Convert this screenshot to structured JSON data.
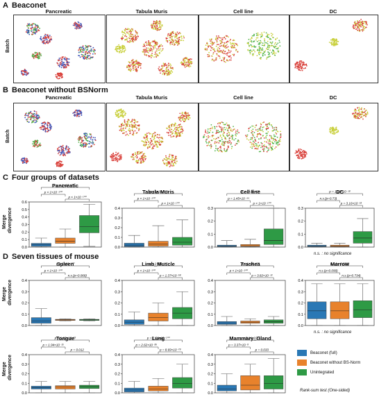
{
  "sections": {
    "A": {
      "letter": "A",
      "title": "Beaconet"
    },
    "B": {
      "letter": "B",
      "title": "Beaconet without BSNorm"
    },
    "C": {
      "letter": "C",
      "title": "Four groups of datasets"
    },
    "D": {
      "letter": "D",
      "title": "Seven tissues of mouse"
    }
  },
  "umap_row_label": "Batch",
  "umap_titles": [
    "Pancreatic",
    "Tabula Muris",
    "Cell line",
    "DC"
  ],
  "box_ylabel": [
    "Merge",
    "divergence"
  ],
  "colors": {
    "full": "#2a78b5",
    "bsnorm": "#e8822c",
    "unint": "#2e9a45",
    "red": "#d9403a",
    "yellow": "#c8cf3a",
    "blue": "#3a52b8",
    "green": "#4fb34a"
  },
  "legend": [
    {
      "label": "Beaconet (full)",
      "color": "#2a78b5"
    },
    {
      "label": "Beaconet without BS-Norm",
      "color": "#e8822c"
    },
    {
      "label": "Unintegrated",
      "color": "#2e9a45"
    }
  ],
  "ns_note": "n.s. : no significance",
  "ranksum_note": "Rank-sum test (One-sided)",
  "chart_data": [
    {
      "type": "box",
      "title": "Pancreatic",
      "ylim": [
        0,
        0.6
      ],
      "yticks": [
        "0.0",
        "0.1",
        "0.2",
        "0.3",
        "0.4",
        "0.5",
        "0.6"
      ],
      "boxes": [
        {
          "q1": 0.01,
          "med": 0.03,
          "q3": 0.05,
          "lo": 0,
          "hi": 0.12
        },
        {
          "q1": 0.05,
          "med": 0.08,
          "q3": 0.12,
          "lo": 0,
          "hi": 0.24
        },
        {
          "q1": 0.19,
          "med": 0.27,
          "q3": 0.42,
          "lo": 0.01,
          "hi": 0.57
        }
      ],
      "pvals": [
        {
          "a": 0,
          "b": 2,
          "text": "p < 1×10⁻¹⁰⁰"
        },
        {
          "a": 0,
          "b": 1,
          "text": "p < 1×10⁻¹⁰⁰"
        },
        {
          "a": 1,
          "b": 2,
          "text": "p < 1×10⁻¹⁰⁰"
        }
      ]
    },
    {
      "type": "box",
      "title": "Tabula Muris",
      "ylim": [
        0,
        0.4
      ],
      "yticks": [
        "0.0",
        "0.1",
        "0.2",
        "0.3",
        "0.4"
      ],
      "boxes": [
        {
          "q1": 0.005,
          "med": 0.02,
          "q3": 0.04,
          "lo": 0,
          "hi": 0.12
        },
        {
          "q1": 0.01,
          "med": 0.03,
          "q3": 0.06,
          "lo": 0,
          "hi": 0.22
        },
        {
          "q1": 0.02,
          "med": 0.05,
          "q3": 0.1,
          "lo": 0,
          "hi": 0.28
        }
      ],
      "pvals": [
        {
          "a": 0,
          "b": 2,
          "text": "p < 1×10⁻¹⁰⁰"
        },
        {
          "a": 0,
          "b": 1,
          "text": "p < 1×10⁻¹⁰⁰"
        },
        {
          "a": 1,
          "b": 2,
          "text": "p < 1×10⁻¹⁰⁰"
        }
      ]
    },
    {
      "type": "box",
      "title": "Cell line",
      "ylim": [
        0,
        0.3
      ],
      "yticks": [
        "0.0",
        "0.1",
        "0.2",
        "0.3"
      ],
      "boxes": [
        {
          "q1": 0.003,
          "med": 0.008,
          "q3": 0.015,
          "lo": 0,
          "hi": 0.05
        },
        {
          "q1": 0.005,
          "med": 0.01,
          "q3": 0.02,
          "lo": 0,
          "hi": 0.06
        },
        {
          "q1": 0.02,
          "med": 0.05,
          "q3": 0.14,
          "lo": 0,
          "hi": 0.3
        }
      ],
      "pvals": [
        {
          "a": 0,
          "b": 2,
          "text": "p < 1×10⁻¹⁰⁰"
        },
        {
          "a": 0,
          "b": 1,
          "text": "p = 1.45×10⁻⁴⁴"
        },
        {
          "a": 1,
          "b": 2,
          "text": "p < 1×10⁻¹⁰⁰"
        }
      ]
    },
    {
      "type": "box",
      "title": "DC",
      "ylim": [
        0,
        0.3
      ],
      "yticks": [
        "0.0",
        "0.1",
        "0.2",
        "0.3"
      ],
      "boxes": [
        {
          "q1": 0.003,
          "med": 0.008,
          "q3": 0.015,
          "lo": 0,
          "hi": 0.03
        },
        {
          "q1": 0.003,
          "med": 0.008,
          "q3": 0.015,
          "lo": 0,
          "hi": 0.03
        },
        {
          "q1": 0.03,
          "med": 0.07,
          "q3": 0.12,
          "lo": 0,
          "hi": 0.22
        }
      ],
      "pvals": [
        {
          "a": 0,
          "b": 2,
          "text": "p = 1.27×10⁻¹⁸"
        },
        {
          "a": 0,
          "b": 1,
          "text": "n.s.(p=0.73)"
        },
        {
          "a": 1,
          "b": 2,
          "text": "p = 3.16×10⁻¹⁸"
        }
      ]
    },
    {
      "type": "box",
      "title": "Spleen",
      "ylim": [
        0,
        0.4
      ],
      "yticks": [
        "0.0",
        "0.1",
        "0.2",
        "0.3",
        "0.4"
      ],
      "boxes": [
        {
          "q1": 0.02,
          "med": 0.04,
          "q3": 0.07,
          "lo": 0,
          "hi": 0.15
        },
        {
          "q1": 0.045,
          "med": 0.05,
          "q3": 0.055,
          "lo": 0.04,
          "hi": 0.06
        },
        {
          "q1": 0.045,
          "med": 0.05,
          "q3": 0.055,
          "lo": 0.04,
          "hi": 0.06
        }
      ],
      "pvals": [
        {
          "a": 0,
          "b": 2,
          "text": "p < 1×10⁻¹⁰⁰"
        },
        {
          "a": 0,
          "b": 1,
          "text": "p < 1×10⁻¹⁰⁰"
        },
        {
          "a": 1,
          "b": 2,
          "text": "n.s.(p=0.068)"
        }
      ]
    },
    {
      "type": "box",
      "title": "Limb_Muscle",
      "ylim": [
        0,
        0.4
      ],
      "yticks": [
        "0.0",
        "0.1",
        "0.2",
        "0.3",
        "0.4"
      ],
      "boxes": [
        {
          "q1": 0.01,
          "med": 0.03,
          "q3": 0.05,
          "lo": 0,
          "hi": 0.12
        },
        {
          "q1": 0.04,
          "med": 0.07,
          "q3": 0.11,
          "lo": 0,
          "hi": 0.2
        },
        {
          "q1": 0.06,
          "med": 0.11,
          "q3": 0.16,
          "lo": 0,
          "hi": 0.3
        }
      ],
      "pvals": [
        {
          "a": 0,
          "b": 2,
          "text": "p < 1×10⁻¹⁰⁰"
        },
        {
          "a": 0,
          "b": 1,
          "text": "p < 1×10⁻¹⁰⁰"
        },
        {
          "a": 1,
          "b": 2,
          "text": "p = 1.37×10⁻⁵⁸"
        }
      ]
    },
    {
      "type": "box",
      "title": "Trachea",
      "ylim": [
        0,
        0.4
      ],
      "yticks": [
        "0.0",
        "0.1",
        "0.2",
        "0.3",
        "0.4"
      ],
      "boxes": [
        {
          "q1": 0.01,
          "med": 0.02,
          "q3": 0.035,
          "lo": 0,
          "hi": 0.08
        },
        {
          "q1": 0.02,
          "med": 0.03,
          "q3": 0.04,
          "lo": 0,
          "hi": 0.06
        },
        {
          "q1": 0.02,
          "med": 0.035,
          "q3": 0.05,
          "lo": 0,
          "hi": 0.08
        }
      ],
      "pvals": [
        {
          "a": 0,
          "b": 2,
          "text": "p < 1×10⁻¹⁰⁰"
        },
        {
          "a": 0,
          "b": 1,
          "text": "p < 1×10⁻¹⁰⁰"
        },
        {
          "a": 1,
          "b": 2,
          "text": "p = 3.82×10⁻¹³"
        }
      ]
    },
    {
      "type": "box",
      "title": "Marrow",
      "ylim": [
        0,
        0.4
      ],
      "yticks": [
        "0.0",
        "0.1",
        "0.2",
        "0.3",
        "0.4"
      ],
      "boxes": [
        {
          "q1": 0.06,
          "med": 0.13,
          "q3": 0.21,
          "lo": 0,
          "hi": 0.37
        },
        {
          "q1": 0.06,
          "med": 0.13,
          "q3": 0.21,
          "lo": 0,
          "hi": 0.37
        },
        {
          "q1": 0.07,
          "med": 0.14,
          "q3": 0.22,
          "lo": 0,
          "hi": 0.37
        }
      ],
      "pvals": [
        {
          "a": 0,
          "b": 2,
          "text": "n.s.(p=0.338)"
        },
        {
          "a": 0,
          "b": 1,
          "text": "n.s.(p=0.090)"
        },
        {
          "a": 1,
          "b": 2,
          "text": "n.s.(p=0.734)"
        }
      ]
    },
    {
      "type": "box",
      "title": "Tongue",
      "ylim": [
        0,
        0.4
      ],
      "yticks": [
        "0.0",
        "0.1",
        "0.2",
        "0.3",
        "0.4"
      ],
      "boxes": [
        {
          "q1": 0.04,
          "med": 0.055,
          "q3": 0.07,
          "lo": 0,
          "hi": 0.12
        },
        {
          "q1": 0.04,
          "med": 0.06,
          "q3": 0.075,
          "lo": 0,
          "hi": 0.12
        },
        {
          "q1": 0.045,
          "med": 0.065,
          "q3": 0.08,
          "lo": 0,
          "hi": 0.12
        }
      ],
      "pvals": [
        {
          "a": 0,
          "b": 2,
          "text": "p = 1.13×10⁻¹⁹"
        },
        {
          "a": 0,
          "b": 1,
          "text": "p = 1.94×10⁻¹⁵"
        },
        {
          "a": 1,
          "b": 2,
          "text": "p = 0.012"
        }
      ]
    },
    {
      "type": "box",
      "title": "Lung",
      "ylim": [
        0,
        0.4
      ],
      "yticks": [
        "0.0",
        "0.1",
        "0.2",
        "0.3",
        "0.4"
      ],
      "boxes": [
        {
          "q1": 0.01,
          "med": 0.03,
          "q3": 0.05,
          "lo": 0,
          "hi": 0.12
        },
        {
          "q1": 0.02,
          "med": 0.04,
          "q3": 0.07,
          "lo": 0,
          "hi": 0.15
        },
        {
          "q1": 0.05,
          "med": 0.1,
          "q3": 0.16,
          "lo": 0,
          "hi": 0.3
        }
      ],
      "pvals": [
        {
          "a": 0,
          "b": 2,
          "text": "p = 2.56×10⁻¹⁰⁰"
        },
        {
          "a": 0,
          "b": 1,
          "text": "p = 2.62×10⁻²⁶"
        },
        {
          "a": 1,
          "b": 2,
          "text": "p = 8.69×10⁻⁷⁸"
        }
      ]
    },
    {
      "type": "box",
      "title": "Mammary_Gland",
      "ylim": [
        0,
        0.4
      ],
      "yticks": [
        "0.0",
        "0.1",
        "0.2",
        "0.3",
        "0.4"
      ],
      "boxes": [
        {
          "q1": 0.02,
          "med": 0.04,
          "q3": 0.08,
          "lo": 0,
          "hi": 0.2
        },
        {
          "q1": 0.03,
          "med": 0.08,
          "q3": 0.18,
          "lo": 0,
          "hi": 0.3
        },
        {
          "q1": 0.04,
          "med": 0.1,
          "q3": 0.18,
          "lo": 0,
          "hi": 0.36
        }
      ],
      "pvals": [
        {
          "a": 0,
          "b": 2,
          "text": "p = 5.14×10⁻⁹"
        },
        {
          "a": 0,
          "b": 1,
          "text": "p = 3.37×10⁻⁹"
        },
        {
          "a": 1,
          "b": 2,
          "text": "p = 0.033"
        }
      ]
    }
  ]
}
